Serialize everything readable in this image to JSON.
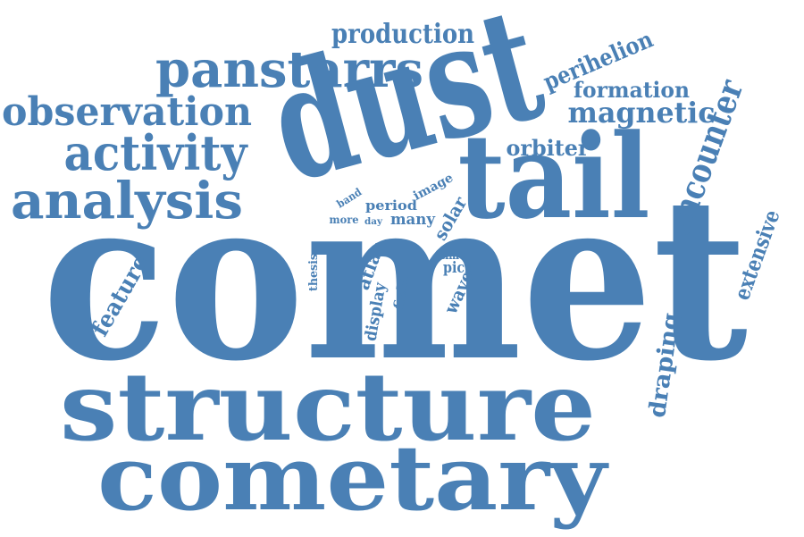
{
  "word_color": "#4a80b5",
  "background": "#ffffff",
  "words": {
    "comet": "comet",
    "dust": "dust",
    "tail": "tail",
    "structure": "structure",
    "cometary": "cometary",
    "panstarrs": "panstarrs",
    "observation": "observation",
    "activity": "activity",
    "analysis": "analysis",
    "production": "production",
    "perihelion": "perihelion",
    "formation": "formation",
    "magnetic": "magnetic",
    "encounter": "encounter",
    "orbiter": "orbiter",
    "extensive": "extensive",
    "draping": "draping",
    "feature": "feature",
    "solar": "solar",
    "many": "many",
    "period": "period",
    "image": "image",
    "band": "band",
    "more": "more",
    "day": "day",
    "thesis": "thesis",
    "atlas": "atlas",
    "display": "display",
    "field": "field",
    "time": "time",
    "pick": "pick",
    "wave": "wave"
  }
}
